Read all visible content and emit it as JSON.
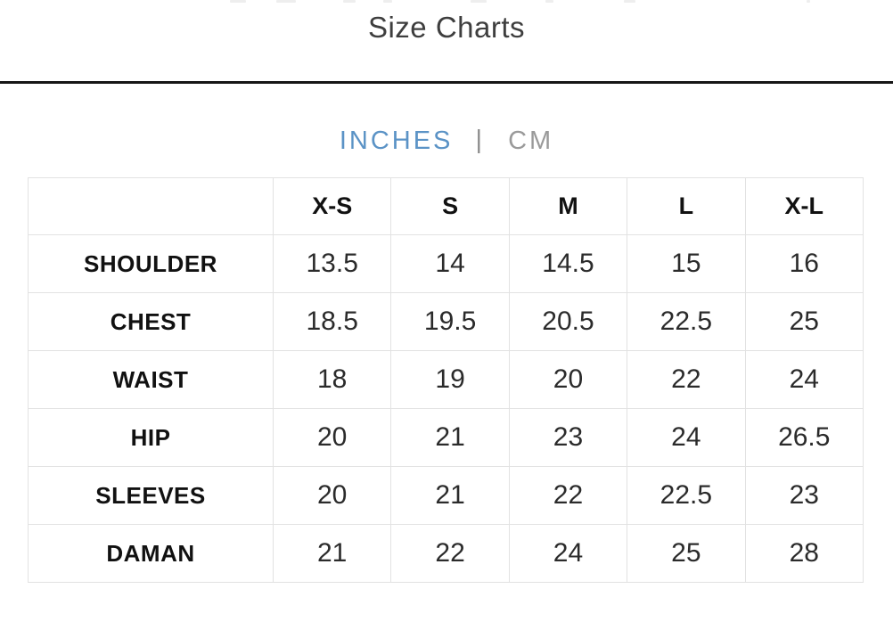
{
  "page": {
    "title": "Size Charts"
  },
  "unit_toggle": {
    "separator": "|",
    "active_color": "#5b93c6",
    "inactive_color": "#9a9a9a",
    "options": [
      {
        "label": "INCHES",
        "active": true
      },
      {
        "label": "CM",
        "active": false
      }
    ]
  },
  "size_table": {
    "columns": [
      "",
      "X-S",
      "S",
      "M",
      "L",
      "X-L"
    ],
    "rows": [
      {
        "label": "SHOULDER",
        "values": [
          "13.5",
          "14",
          "14.5",
          "15",
          "16"
        ]
      },
      {
        "label": "CHEST",
        "values": [
          "18.5",
          "19.5",
          "20.5",
          "22.5",
          "25"
        ]
      },
      {
        "label": "WAIST",
        "values": [
          "18",
          "19",
          "20",
          "22",
          "24"
        ]
      },
      {
        "label": "HIP",
        "values": [
          "20",
          "21",
          "23",
          "24",
          "26.5"
        ]
      },
      {
        "label": "SLEEVES",
        "values": [
          "20",
          "21",
          "22",
          "22.5",
          "23"
        ]
      },
      {
        "label": "DAMAN",
        "values": [
          "21",
          "22",
          "24",
          "25",
          "28"
        ]
      }
    ]
  }
}
